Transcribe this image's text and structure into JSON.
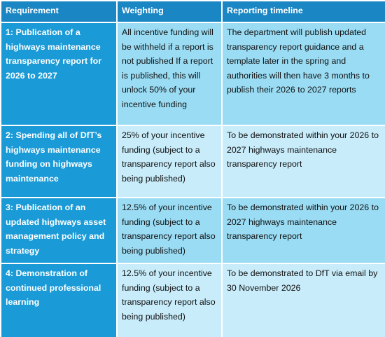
{
  "table": {
    "header": [
      "Requirement",
      "Weighting",
      "Reporting timeline"
    ],
    "rows": [
      [
        "1: Publication of a highways maintenance transparency report for 2026 to 2027",
        "All incentive funding will be withheld if a report is not published If a report is published, this will unlock 50% of your incentive funding",
        "The department will publish updated transparency report guidance and a template later in the spring and authorities will then have 3 months to publish their 2026 to 2027 reports"
      ],
      [
        "2: Spending all of DfT’s highways maintenance funding on highways maintenance",
        "25% of your incentive funding (subject to a transparency report also being published)",
        "To be demonstrated within your 2026 to 2027 highways maintenance transparency report"
      ],
      [
        "3: Publication of an updated highways asset management policy and strategy",
        "12.5% of your incentive funding (subject to a transparency report also being published)",
        "To be demonstrated within your 2026 to 2027 highways maintenance transparency report"
      ],
      [
        "4: Demonstration of continued professional learning",
        "12.5% of your incentive funding (subject to a transparency report also being published)",
        "To be demonstrated to DfT via email by 30 November 2026"
      ]
    ]
  }
}
